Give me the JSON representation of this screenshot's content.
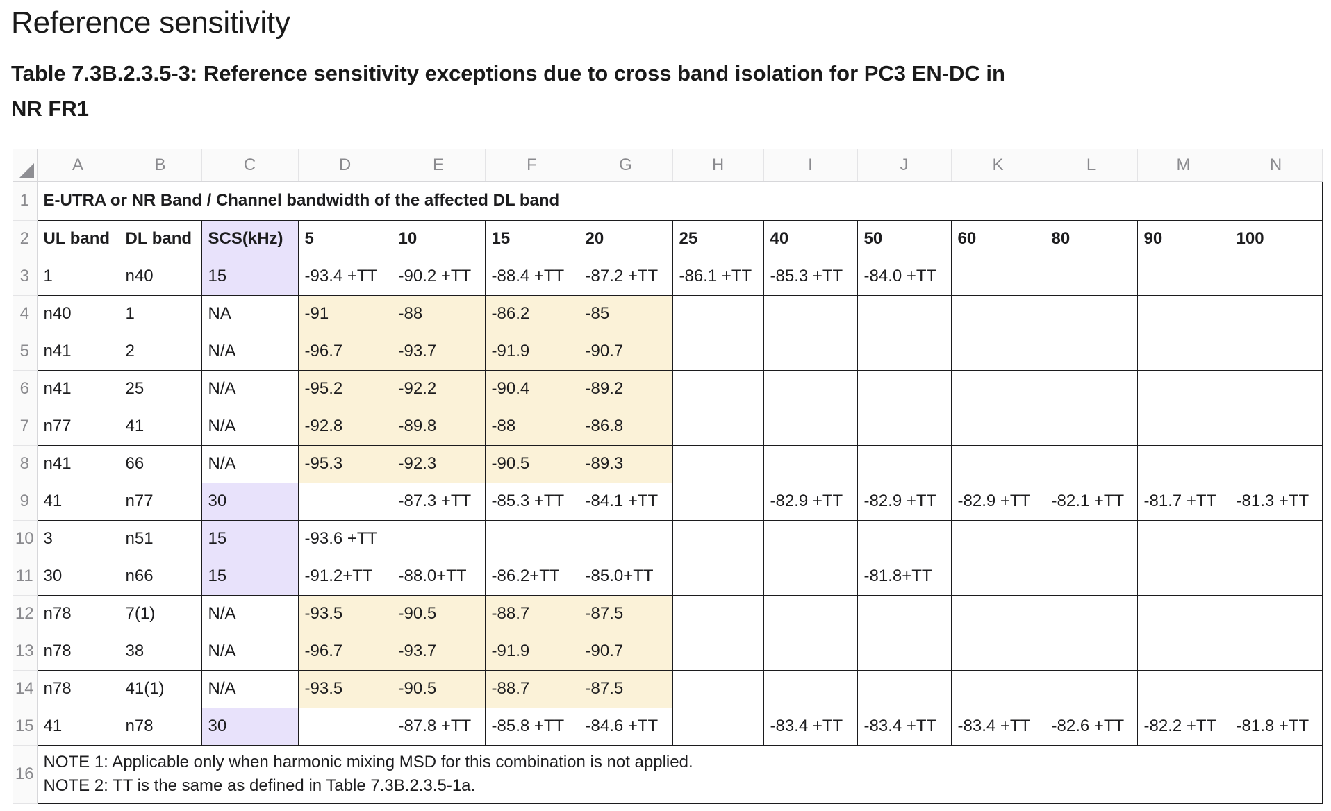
{
  "page_title": "Reference sensitivity",
  "table_caption": "Table 7.3B.2.3.5-3: Reference sensitivity exceptions due to cross band isolation for PC3 EN-DC in NR FR1",
  "columns": [
    "A",
    "B",
    "C",
    "D",
    "E",
    "F",
    "G",
    "H",
    "I",
    "J",
    "K",
    "L",
    "M",
    "N"
  ],
  "row_numbers": [
    "1",
    "2",
    "3",
    "4",
    "5",
    "6",
    "7",
    "8",
    "9",
    "10",
    "11",
    "12",
    "13",
    "14",
    "15",
    "16"
  ],
  "header_row1": "E-UTRA or NR Band / Channel bandwidth of the affected DL band",
  "header_row2": [
    "UL band",
    "DL band",
    "SCS(kHz)",
    "5",
    "10",
    "15",
    "20",
    "25",
    "40",
    "50",
    "60",
    "80",
    "90",
    "100"
  ],
  "rows": [
    [
      "1",
      "n40",
      "15",
      "-93.4 +TT",
      "-90.2 +TT",
      "-88.4 +TT",
      "-87.2 +TT",
      "-86.1 +TT",
      "-85.3 +TT",
      "-84.0 +TT",
      "",
      "",
      "",
      ""
    ],
    [
      "n40",
      "1",
      "NA",
      "-91",
      "-88",
      "-86.2",
      "-85",
      "",
      "",
      "",
      "",
      "",
      "",
      ""
    ],
    [
      "n41",
      "2",
      "N/A",
      "-96.7",
      "-93.7",
      "-91.9",
      "-90.7",
      "",
      "",
      "",
      "",
      "",
      "",
      ""
    ],
    [
      "n41",
      "25",
      "N/A",
      "-95.2",
      "-92.2",
      "-90.4",
      "-89.2",
      "",
      "",
      "",
      "",
      "",
      "",
      ""
    ],
    [
      "n77",
      "41",
      "N/A",
      "-92.8",
      "-89.8",
      "-88",
      "-86.8",
      "",
      "",
      "",
      "",
      "",
      "",
      ""
    ],
    [
      "n41",
      "66",
      "N/A",
      "-95.3",
      "-92.3",
      "-90.5",
      "-89.3",
      "",
      "",
      "",
      "",
      "",
      "",
      ""
    ],
    [
      "41",
      "n77",
      "30",
      "",
      "-87.3 +TT",
      "-85.3 +TT",
      "-84.1 +TT",
      "",
      "-82.9 +TT",
      "-82.9 +TT",
      "-82.9 +TT",
      "-82.1 +TT",
      "-81.7 +TT",
      "-81.3 +TT"
    ],
    [
      "3",
      "n51",
      "15",
      "-93.6 +TT",
      "",
      "",
      "",
      "",
      "",
      "",
      "",
      "",
      "",
      ""
    ],
    [
      "30",
      "n66",
      "15",
      "-91.2+TT",
      "-88.0+TT",
      "-86.2+TT",
      "-85.0+TT",
      "",
      "",
      "-81.8+TT",
      "",
      "",
      "",
      ""
    ],
    [
      "n78",
      "7(1)",
      "N/A",
      "-93.5",
      "-90.5",
      "-88.7",
      "-87.5",
      "",
      "",
      "",
      "",
      "",
      "",
      ""
    ],
    [
      "n78",
      "38",
      "N/A",
      "-96.7",
      "-93.7",
      "-91.9",
      "-90.7",
      "",
      "",
      "",
      "",
      "",
      "",
      ""
    ],
    [
      "n78",
      "41(1)",
      "N/A",
      "-93.5",
      "-90.5",
      "-88.7",
      "-87.5",
      "",
      "",
      "",
      "",
      "",
      "",
      ""
    ],
    [
      "41",
      "n78",
      "30",
      "",
      "-87.8 +TT",
      "-85.8 +TT",
      "-84.6 +TT",
      "",
      "-83.4 +TT",
      "-83.4 +TT",
      "-83.4 +TT",
      "-82.6 +TT",
      "-82.2 +TT",
      "-81.8 +TT"
    ]
  ],
  "row_fill": [
    "purple",
    "yellow",
    "yellow",
    "yellow",
    "yellow",
    "yellow",
    "purple",
    "purple",
    "purple",
    "yellow",
    "yellow",
    "yellow",
    "purple"
  ],
  "notes": [
    "NOTE 1: Applicable only when harmonic mixing MSD for this combination is not applied.",
    "NOTE 2: TT is the same as defined in Table 7.3B.2.3.5-1a."
  ],
  "colors": {
    "scs_highlight": "#e8e2fb",
    "value_highlight": "#fbf2d8",
    "grid_border": "#1c1c1e",
    "header_text": "#8a8a8e"
  }
}
